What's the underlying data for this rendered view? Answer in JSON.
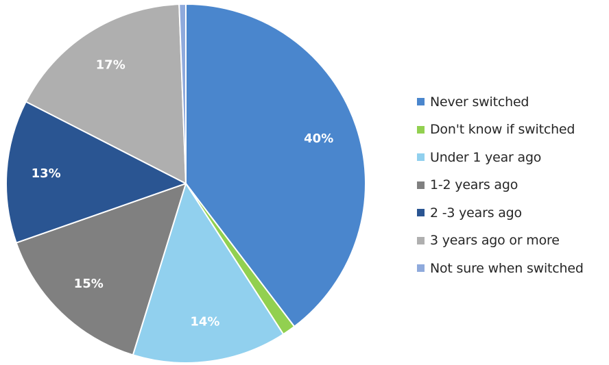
{
  "chart_data": {
    "type": "pie",
    "title": "",
    "start_angle_deg": 0,
    "direction": "clockwise",
    "legend_position": "right",
    "slices": [
      {
        "name": "Never switched",
        "value": 40,
        "label": "40%",
        "color": "#4A86CD"
      },
      {
        "name": "Don't know if switched",
        "value": 1.2,
        "label": "",
        "color": "#92D050"
      },
      {
        "name": "Under 1 year ago",
        "value": 14,
        "label": "14%",
        "color": "#91D0EE"
      },
      {
        "name": "1-2 years ago",
        "value": 15,
        "label": "15%",
        "color": "#808080"
      },
      {
        "name": "2 -3 years ago",
        "value": 13,
        "label": "13%",
        "color": "#2A5592"
      },
      {
        "name": "3 years ago or more",
        "value": 17,
        "label": "17%",
        "color": "#AFAFAF"
      },
      {
        "name": "Not sure when switched",
        "value": 0.6,
        "label": "",
        "color": "#8FAADC"
      }
    ]
  }
}
